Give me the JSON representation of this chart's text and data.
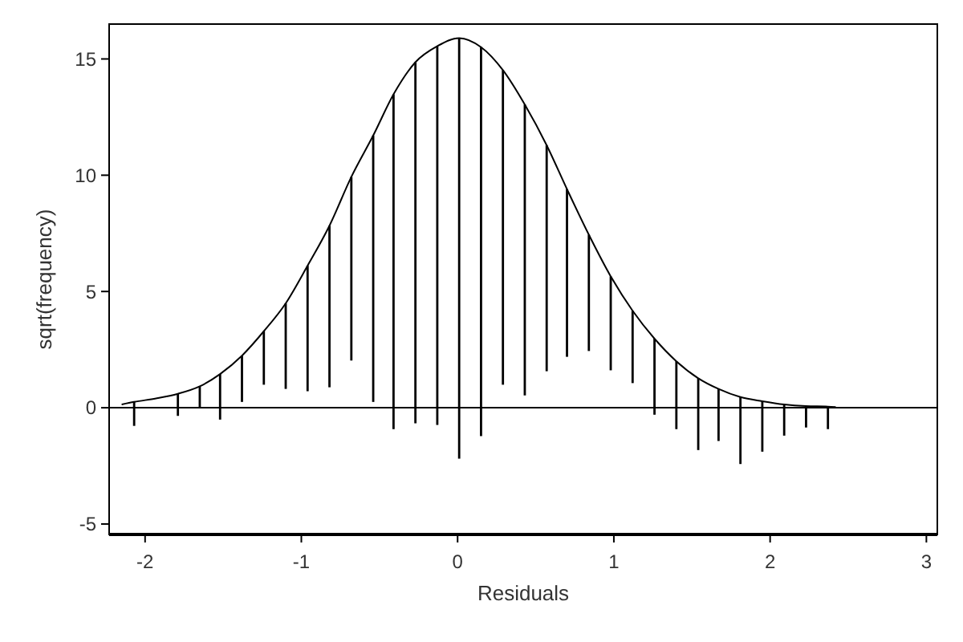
{
  "chart_data": {
    "type": "bar",
    "xlabel": "Residuals",
    "ylabel": "sqrt(frequency)",
    "xlim": [
      -2.23,
      3.07
    ],
    "ylim": [
      -5.45,
      16.5
    ],
    "xticks": [
      -2,
      -1,
      0,
      1,
      2,
      3
    ],
    "yticks": [
      -5,
      0,
      5,
      10,
      15
    ],
    "grid": false,
    "ref_lines": [
      {
        "axis": "y",
        "value": 0,
        "color": "#000000"
      }
    ],
    "series": [
      {
        "color": "#000000",
        "x": [
          -2.07,
          -1.79,
          -1.65,
          -1.52,
          -1.38,
          -1.24,
          -1.1,
          -0.96,
          -0.82,
          -0.68,
          -0.54,
          -0.41,
          -0.27,
          -0.13,
          0.01,
          0.15,
          0.29,
          0.43,
          0.57,
          0.7,
          0.84,
          0.98,
          1.12,
          1.26,
          1.4,
          1.54,
          1.67,
          1.81,
          1.95,
          2.09,
          2.23,
          2.37
        ],
        "base": [
          -0.78,
          -0.35,
          0.0,
          -0.51,
          0.25,
          0.99,
          0.81,
          0.71,
          0.88,
          2.03,
          0.25,
          -0.92,
          -0.67,
          -0.74,
          -2.19,
          -1.22,
          0.99,
          0.53,
          1.57,
          2.19,
          2.44,
          1.61,
          1.06,
          -0.3,
          -0.92,
          -1.82,
          -1.43,
          -2.42,
          -1.89,
          -1.2,
          -0.85,
          -0.92
        ],
        "values": [
          1.03,
          0.95,
          0.92,
          1.96,
          1.99,
          2.3,
          3.68,
          5.4,
          6.95,
          7.9,
          11.46,
          14.4,
          15.53,
          16.29,
          18.09,
          16.73,
          13.53,
          12.51,
          9.72,
          7.21,
          5.0,
          4.04,
          3.11,
          3.27,
          2.92,
          3.09,
          2.24,
          2.88,
          2.17,
          1.34,
          0.92,
          0.97
        ]
      },
      {
        "type": "line",
        "color": "#000000",
        "x": [
          -2.15,
          -2.07,
          -1.93,
          -1.79,
          -1.65,
          -1.52,
          -1.38,
          -1.24,
          -1.1,
          -0.96,
          -0.82,
          -0.68,
          -0.54,
          -0.41,
          -0.27,
          -0.13,
          0.01,
          0.15,
          0.29,
          0.43,
          0.57,
          0.7,
          0.84,
          0.98,
          1.12,
          1.26,
          1.4,
          1.54,
          1.67,
          1.81,
          1.95,
          2.09,
          2.23,
          2.37,
          2.42
        ],
        "values": [
          0.14,
          0.25,
          0.4,
          0.6,
          0.92,
          1.45,
          2.24,
          3.29,
          4.49,
          6.11,
          7.83,
          9.93,
          11.71,
          13.48,
          14.86,
          15.55,
          15.9,
          15.51,
          14.52,
          13.04,
          11.29,
          9.4,
          7.44,
          5.65,
          4.17,
          2.97,
          2.0,
          1.27,
          0.81,
          0.46,
          0.28,
          0.14,
          0.07,
          0.05,
          0.03
        ]
      }
    ]
  }
}
